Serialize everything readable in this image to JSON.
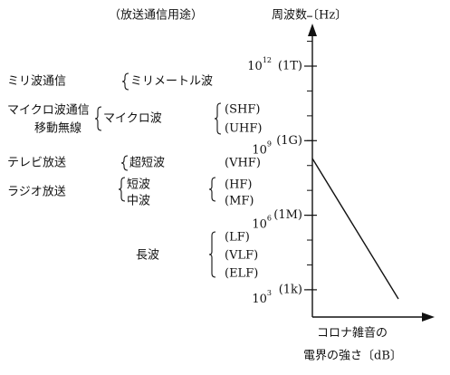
{
  "header": {
    "left": "（放送通信用途）",
    "right": "周波数〔Hz〕"
  },
  "axis": {
    "ticks": [
      {
        "base": "10",
        "exp": "12",
        "label": "(1T)"
      },
      {
        "base": "10",
        "exp": "9",
        "label": "(1G)"
      },
      {
        "base": "10",
        "exp": "6",
        "label": "(1M)"
      },
      {
        "base": "10",
        "exp": "3",
        "label": "(1k)"
      }
    ],
    "x_label": [
      "コロナ雑音の",
      "電界の強さ〔dB〕"
    ]
  },
  "uses": [
    "ミリ波通信",
    "マイクロ波通信",
    "移動無線",
    "テレビ放送",
    "ラジオ放送"
  ],
  "waves": [
    "ミリメートル波",
    "マイクロ波",
    "超短波",
    "短波",
    "中波",
    "長波"
  ],
  "bands": [
    "(SHF)",
    "(UHF)",
    "(VHF)",
    "(HF)",
    "(MF)",
    "(LF)",
    "(VLF)",
    "(ELF)"
  ]
}
